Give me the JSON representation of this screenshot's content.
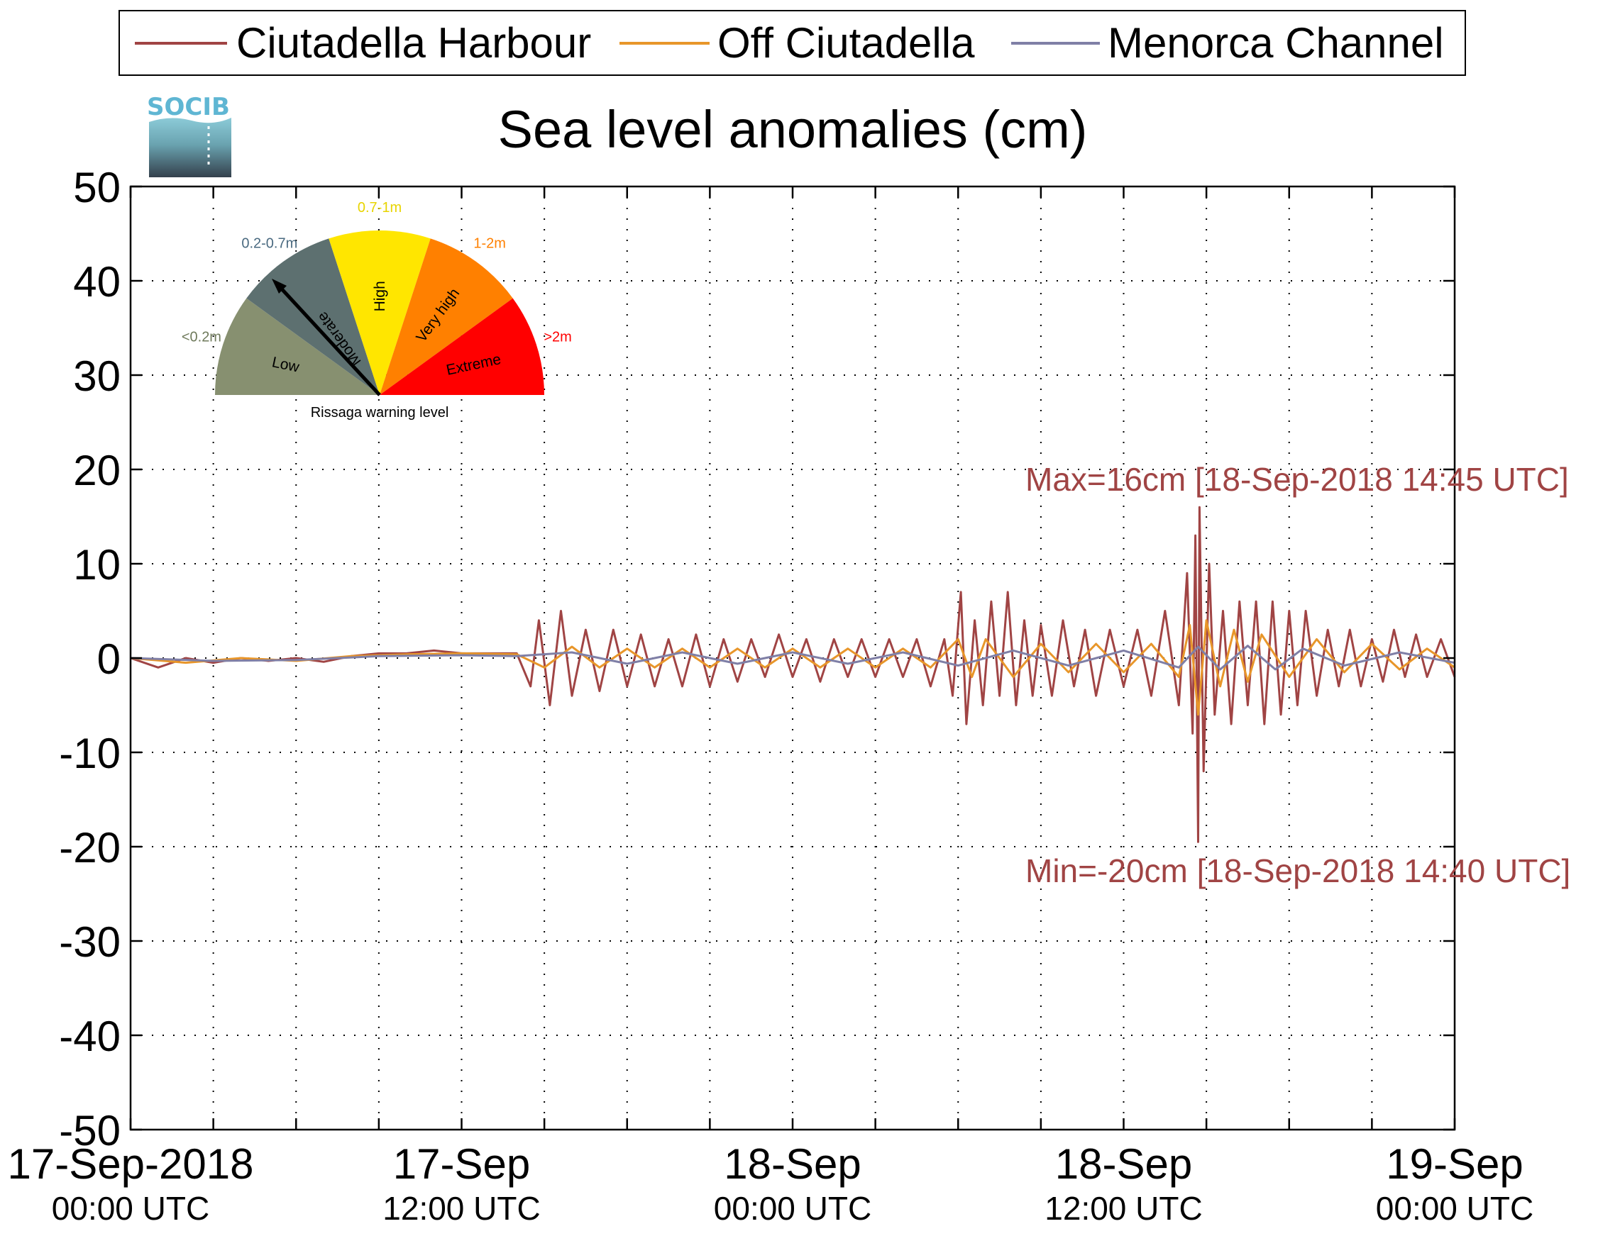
{
  "chart_data": {
    "type": "line",
    "title": "Sea level anomalies (cm)",
    "xlabel": "",
    "ylabel": "",
    "ylim": [
      -50,
      50
    ],
    "yticks": [
      50,
      40,
      30,
      20,
      10,
      0,
      -10,
      -20,
      -30,
      -40,
      -50
    ],
    "xlim_hours": [
      0,
      48
    ],
    "xticks": [
      {
        "line1": "17-Sep-2018",
        "line2": "00:00 UTC"
      },
      {
        "line1": "17-Sep",
        "line2": "12:00 UTC"
      },
      {
        "line1": "18-Sep",
        "line2": "00:00 UTC"
      },
      {
        "line1": "18-Sep",
        "line2": "12:00 UTC"
      },
      {
        "line1": "19-Sep",
        "line2": "00:00 UTC"
      }
    ],
    "grid": true,
    "legend_position": "top",
    "series": [
      {
        "name": "Ciutadella Harbour",
        "color": "#a04444",
        "points": [
          [
            0,
            0
          ],
          [
            1,
            -1
          ],
          [
            2,
            0
          ],
          [
            3,
            -0.5
          ],
          [
            4,
            0
          ],
          [
            5,
            -0.3
          ],
          [
            6,
            0
          ],
          [
            7,
            -0.4
          ],
          [
            8,
            0.2
          ],
          [
            9,
            0.5
          ],
          [
            10,
            0.5
          ],
          [
            11,
            0.8
          ],
          [
            12,
            0.5
          ],
          [
            13,
            0.5
          ],
          [
            14,
            0.5
          ],
          [
            14.5,
            -3
          ],
          [
            14.8,
            4
          ],
          [
            15.2,
            -5
          ],
          [
            15.6,
            5
          ],
          [
            16,
            -4
          ],
          [
            16.5,
            3
          ],
          [
            17,
            -3.5
          ],
          [
            17.5,
            3
          ],
          [
            18,
            -3
          ],
          [
            18.5,
            2.5
          ],
          [
            19,
            -3
          ],
          [
            19.5,
            2
          ],
          [
            20,
            -3
          ],
          [
            20.5,
            2.5
          ],
          [
            21,
            -3
          ],
          [
            21.5,
            2
          ],
          [
            22,
            -2.5
          ],
          [
            22.5,
            2
          ],
          [
            23,
            -2
          ],
          [
            23.5,
            2.5
          ],
          [
            24,
            -2
          ],
          [
            24.5,
            2
          ],
          [
            25,
            -2.5
          ],
          [
            25.5,
            2
          ],
          [
            26,
            -2
          ],
          [
            26.5,
            2
          ],
          [
            27,
            -2
          ],
          [
            27.5,
            2
          ],
          [
            28,
            -2
          ],
          [
            28.5,
            2
          ],
          [
            29,
            -3
          ],
          [
            29.5,
            2
          ],
          [
            29.8,
            -4
          ],
          [
            30.1,
            7
          ],
          [
            30.3,
            -7
          ],
          [
            30.6,
            4
          ],
          [
            30.9,
            -5
          ],
          [
            31.2,
            6
          ],
          [
            31.5,
            -4
          ],
          [
            31.8,
            7
          ],
          [
            32.1,
            -5
          ],
          [
            32.4,
            4
          ],
          [
            32.7,
            -4
          ],
          [
            33,
            3.5
          ],
          [
            33.4,
            -4
          ],
          [
            33.8,
            4
          ],
          [
            34.2,
            -3
          ],
          [
            34.6,
            3
          ],
          [
            35,
            -4
          ],
          [
            35.5,
            3
          ],
          [
            36,
            -3
          ],
          [
            36.5,
            3
          ],
          [
            37,
            -4
          ],
          [
            37.5,
            5
          ],
          [
            38,
            -5
          ],
          [
            38.3,
            9
          ],
          [
            38.5,
            -8
          ],
          [
            38.6,
            13
          ],
          [
            38.7,
            -19.5
          ],
          [
            38.75,
            16
          ],
          [
            38.9,
            -12
          ],
          [
            39.1,
            10
          ],
          [
            39.3,
            -6
          ],
          [
            39.6,
            5
          ],
          [
            39.9,
            -7
          ],
          [
            40.2,
            6
          ],
          [
            40.5,
            -5
          ],
          [
            40.8,
            6
          ],
          [
            41.1,
            -7
          ],
          [
            41.4,
            6
          ],
          [
            41.7,
            -6
          ],
          [
            42,
            5
          ],
          [
            42.3,
            -5
          ],
          [
            42.6,
            5
          ],
          [
            43,
            -4
          ],
          [
            43.4,
            3
          ],
          [
            43.8,
            -3
          ],
          [
            44.2,
            3
          ],
          [
            44.6,
            -3
          ],
          [
            45,
            2
          ],
          [
            45.4,
            -2.5
          ],
          [
            45.8,
            3
          ],
          [
            46.2,
            -2
          ],
          [
            46.6,
            2.5
          ],
          [
            47,
            -2
          ],
          [
            47.5,
            2
          ],
          [
            48,
            -2
          ]
        ]
      },
      {
        "name": "Off Ciutadella",
        "color": "#e8962a",
        "points": [
          [
            0,
            0
          ],
          [
            2,
            -0.5
          ],
          [
            4,
            0
          ],
          [
            6,
            -0.3
          ],
          [
            8,
            0.2
          ],
          [
            10,
            0.4
          ],
          [
            12,
            0.5
          ],
          [
            14,
            0.4
          ],
          [
            15,
            -1
          ],
          [
            16,
            1.2
          ],
          [
            17,
            -1
          ],
          [
            18,
            1
          ],
          [
            19,
            -1
          ],
          [
            20,
            1
          ],
          [
            21,
            -1
          ],
          [
            22,
            1
          ],
          [
            23,
            -1
          ],
          [
            24,
            1
          ],
          [
            25,
            -1
          ],
          [
            26,
            1
          ],
          [
            27,
            -1
          ],
          [
            28,
            1
          ],
          [
            29,
            -1
          ],
          [
            30,
            2
          ],
          [
            30.5,
            -2
          ],
          [
            31,
            2
          ],
          [
            32,
            -2
          ],
          [
            33,
            1.5
          ],
          [
            34,
            -1.5
          ],
          [
            35,
            1.5
          ],
          [
            36,
            -1.5
          ],
          [
            37,
            1.5
          ],
          [
            38,
            -2
          ],
          [
            38.4,
            3.5
          ],
          [
            38.7,
            -6
          ],
          [
            39,
            4
          ],
          [
            39.5,
            -3
          ],
          [
            40,
            3
          ],
          [
            40.5,
            -2.5
          ],
          [
            41,
            2.5
          ],
          [
            42,
            -2
          ],
          [
            43,
            2
          ],
          [
            44,
            -1.5
          ],
          [
            45,
            1.5
          ],
          [
            46,
            -1.2
          ],
          [
            47,
            1
          ],
          [
            48,
            -1
          ]
        ]
      },
      {
        "name": "Menorca Channel",
        "color": "#7f7fa6",
        "points": [
          [
            0,
            0
          ],
          [
            3,
            -0.3
          ],
          [
            6,
            -0.2
          ],
          [
            9,
            0.2
          ],
          [
            12,
            0.3
          ],
          [
            14,
            0.2
          ],
          [
            16,
            0.6
          ],
          [
            18,
            -0.6
          ],
          [
            20,
            0.6
          ],
          [
            22,
            -0.6
          ],
          [
            24,
            0.6
          ],
          [
            26,
            -0.6
          ],
          [
            28,
            0.6
          ],
          [
            30,
            -0.8
          ],
          [
            32,
            0.8
          ],
          [
            34,
            -0.8
          ],
          [
            36,
            0.8
          ],
          [
            38,
            -1
          ],
          [
            38.7,
            1.2
          ],
          [
            39.5,
            -1.2
          ],
          [
            40.5,
            1.3
          ],
          [
            41.5,
            -1.2
          ],
          [
            42.5,
            1
          ],
          [
            44,
            -0.8
          ],
          [
            46,
            0.6
          ],
          [
            48,
            -0.5
          ]
        ]
      }
    ],
    "annotations": {
      "max_label": "Max=16cm [18-Sep-2018 14:45 UTC]",
      "min_label": "Min=-20cm [18-Sep-2018 14:40 UTC]",
      "color": "#a04444"
    }
  },
  "logo": {
    "text": "SOCIB"
  },
  "gauge": {
    "caption": "Rissaga warning level",
    "needle_level": "Moderate",
    "sectors": [
      {
        "name": "Low",
        "range": "<0.2m",
        "color": "#879070",
        "label_color": "#6f7a5b"
      },
      {
        "name": "Moderate",
        "range": "0.2-0.7m",
        "color": "#5d7070",
        "label_color": "#4a6a80"
      },
      {
        "name": "High",
        "range": "0.7-1m",
        "color": "#ffe600",
        "label_color": "#e8d400"
      },
      {
        "name": "Very high",
        "range": "1-2m",
        "color": "#ff8000",
        "label_color": "#ff8000"
      },
      {
        "name": "Extreme",
        "range": ">2m",
        "color": "#ff0000",
        "label_color": "#ff0000"
      }
    ]
  }
}
